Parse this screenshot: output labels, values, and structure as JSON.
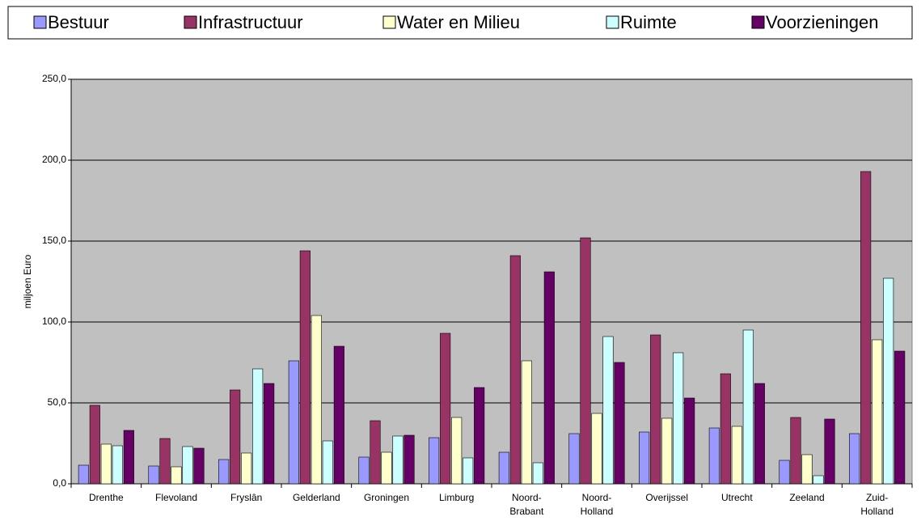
{
  "chart_data": {
    "type": "bar",
    "y_label": "miljoen Euro",
    "categories": [
      "Drenthe",
      "Flevoland",
      "Fryslân",
      "Gelderland",
      "Groningen",
      "Limburg",
      "Noord-Brabant",
      "Noord-Holland",
      "Overijssel",
      "Utrecht",
      "Zeeland",
      "Zuid-Holland"
    ],
    "series": [
      {
        "name": "Bestuur",
        "color": "#9999ff",
        "values": [
          11.5,
          11,
          15,
          76,
          16.5,
          28.5,
          19.5,
          31,
          32,
          34.5,
          14.5,
          31
        ]
      },
      {
        "name": "Infrastructuur",
        "color": "#993366",
        "values": [
          48.5,
          28,
          58,
          144,
          39,
          93,
          141,
          152,
          92,
          68,
          41,
          193
        ]
      },
      {
        "name": "Water en Milieu",
        "color": "#ffffcc",
        "values": [
          24.5,
          10.5,
          19,
          104,
          19.5,
          41,
          76,
          43.5,
          40.5,
          35.5,
          18,
          89
        ]
      },
      {
        "name": "Ruimte",
        "color": "#ccffff",
        "values": [
          23.5,
          23,
          71,
          26.5,
          29.5,
          16,
          13,
          91,
          81,
          95,
          5,
          127
        ]
      },
      {
        "name": "Voorzieningen",
        "color": "#660066",
        "values": [
          33,
          22,
          62,
          85,
          30,
          59.5,
          131,
          75,
          53,
          62,
          40,
          82
        ]
      }
    ],
    "ylim": [
      0,
      250
    ],
    "yticks": [
      {
        "value": 0,
        "label": "0,0"
      },
      {
        "value": 50,
        "label": "50,0"
      },
      {
        "value": 100,
        "label": "100,0"
      },
      {
        "value": 150,
        "label": "150,0"
      },
      {
        "value": 200,
        "label": "200,0"
      },
      {
        "value": 250,
        "label": "250,0"
      }
    ],
    "grid": true,
    "legend": "top"
  }
}
